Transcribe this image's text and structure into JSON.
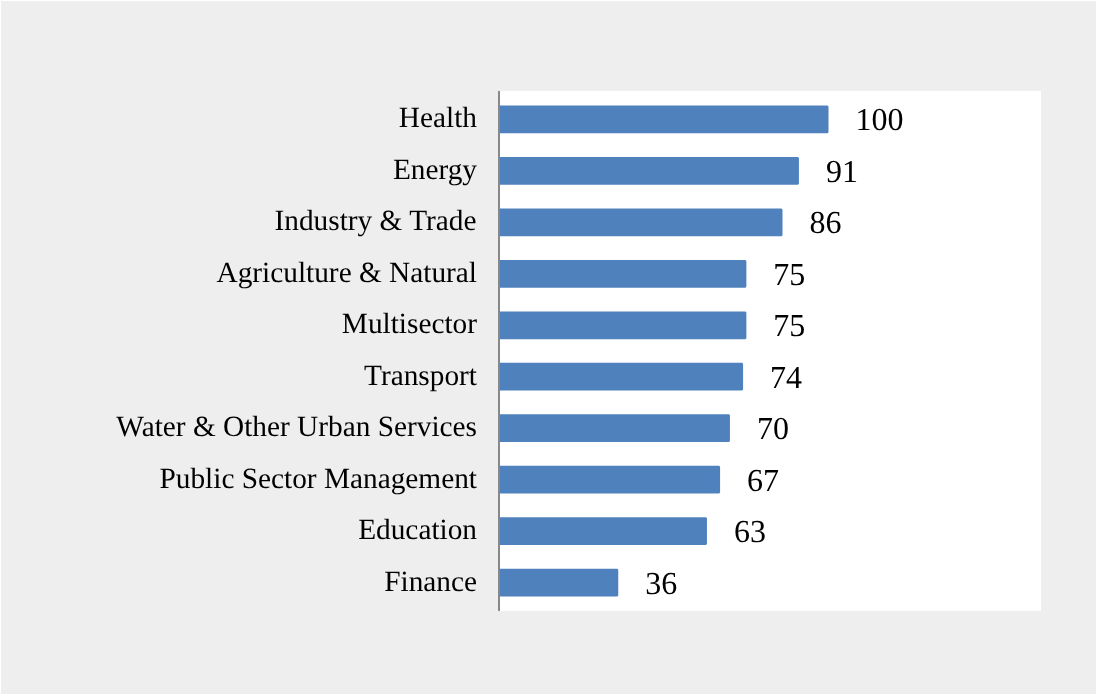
{
  "chart_data": {
    "type": "bar",
    "orientation": "horizontal",
    "categories": [
      "Health",
      "Energy",
      "Industry & Trade",
      "Agriculture & Natural",
      "Multisector",
      "Transport",
      "Water & Other Urban Services",
      "Public Sector Management",
      "Education",
      "Finance"
    ],
    "values": [
      100,
      91,
      86,
      75,
      75,
      74,
      70,
      67,
      63,
      36
    ],
    "color": "#4f81bd",
    "data_labels": true,
    "grid": false
  }
}
